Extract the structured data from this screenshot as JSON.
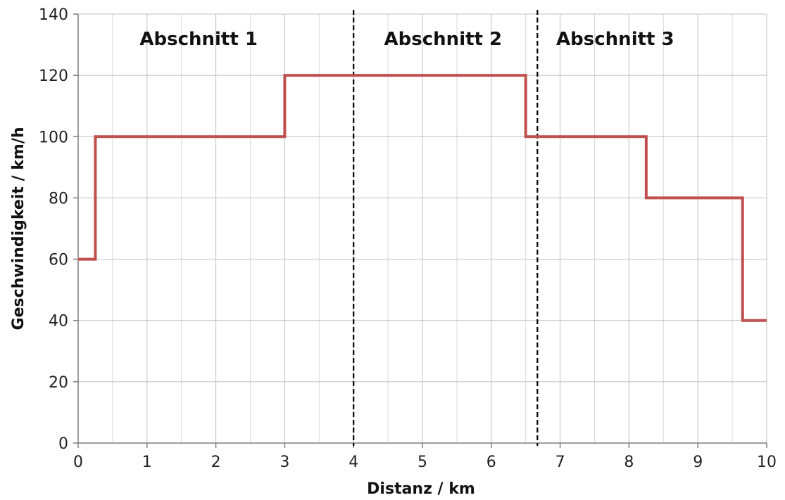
{
  "chart_data": {
    "type": "line",
    "xlabel": "Distanz / km",
    "ylabel": "Geschwindigkeit  / km/h",
    "xlim": [
      0,
      10
    ],
    "ylim": [
      0,
      140
    ],
    "x_ticks": [
      0,
      1,
      2,
      3,
      4,
      5,
      6,
      7,
      8,
      9,
      10
    ],
    "y_ticks": [
      0,
      20,
      40,
      60,
      80,
      100,
      120,
      140
    ],
    "x_minor_step": 0.5,
    "grid": true,
    "legend": "none",
    "series": [
      {
        "step": true,
        "color": "#c0504d",
        "points": [
          {
            "x": 0,
            "y": 60
          },
          {
            "x": 0.25,
            "y": 60
          },
          {
            "x": 0.25,
            "y": 100
          },
          {
            "x": 3,
            "y": 100
          },
          {
            "x": 3,
            "y": 120
          },
          {
            "x": 6.5,
            "y": 120
          },
          {
            "x": 6.5,
            "y": 100
          },
          {
            "x": 8.25,
            "y": 100
          },
          {
            "x": 8.25,
            "y": 80
          },
          {
            "x": 9.65,
            "y": 80
          },
          {
            "x": 9.65,
            "y": 40
          },
          {
            "x": 10,
            "y": 40
          }
        ]
      }
    ],
    "section_boundaries": [
      4,
      6.67
    ],
    "sections": [
      {
        "label": "Abschnitt 1",
        "x_center": 1.75
      },
      {
        "label": "Abschnitt 2",
        "x_center": 5.3
      },
      {
        "label": "Abschnitt 3",
        "x_center": 7.8
      }
    ]
  }
}
